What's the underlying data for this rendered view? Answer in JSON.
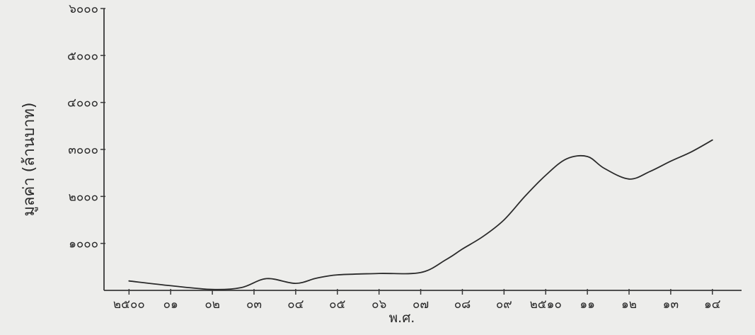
{
  "chart_data": {
    "type": "line",
    "xlabel": "พ.ศ.",
    "ylabel": "มูลค่า (ล้านบาท)",
    "ylim": [
      0,
      6000
    ],
    "yticks": [
      {
        "value": 1000,
        "label": "๑๐๐๐"
      },
      {
        "value": 2000,
        "label": "๒๐๐๐"
      },
      {
        "value": 3000,
        "label": "๓๐๐๐"
      },
      {
        "value": 4000,
        "label": "๔๐๐๐"
      },
      {
        "value": 5000,
        "label": "๕๐๐๐"
      },
      {
        "value": 6000,
        "label": "๖๐๐๐"
      }
    ],
    "xticks": [
      {
        "value": 2500,
        "label": "๒๕๐๐"
      },
      {
        "value": 2501,
        "label": "๐๑"
      },
      {
        "value": 2502,
        "label": "๐๒"
      },
      {
        "value": 2503,
        "label": "๐๓"
      },
      {
        "value": 2504,
        "label": "๐๔"
      },
      {
        "value": 2505,
        "label": "๐๕"
      },
      {
        "value": 2506,
        "label": "๐๖"
      },
      {
        "value": 2507,
        "label": "๐๗"
      },
      {
        "value": 2508,
        "label": "๐๘"
      },
      {
        "value": 2509,
        "label": "๐๙"
      },
      {
        "value": 2510,
        "label": "๒๕๑๐"
      },
      {
        "value": 2511,
        "label": "๑๑"
      },
      {
        "value": 2512,
        "label": "๑๒"
      },
      {
        "value": 2513,
        "label": "๑๓"
      },
      {
        "value": 2514,
        "label": "๑๔"
      }
    ],
    "xlim": [
      2499.4,
      2514.7
    ],
    "grid": false,
    "series": [
      {
        "x": [
          2500,
          2501,
          2502,
          2502.7,
          2503.3,
          2504,
          2504.5,
          2505,
          2506,
          2507,
          2507.6,
          2508,
          2508.5,
          2509,
          2509.5,
          2510,
          2510.5,
          2511,
          2511.4,
          2512,
          2512.5,
          2513,
          2513.5,
          2514
        ],
        "y": [
          200,
          100,
          20,
          60,
          250,
          150,
          260,
          330,
          360,
          380,
          650,
          880,
          1150,
          1500,
          2000,
          2450,
          2800,
          2850,
          2600,
          2370,
          2530,
          2750,
          2950,
          3200
        ]
      }
    ]
  }
}
